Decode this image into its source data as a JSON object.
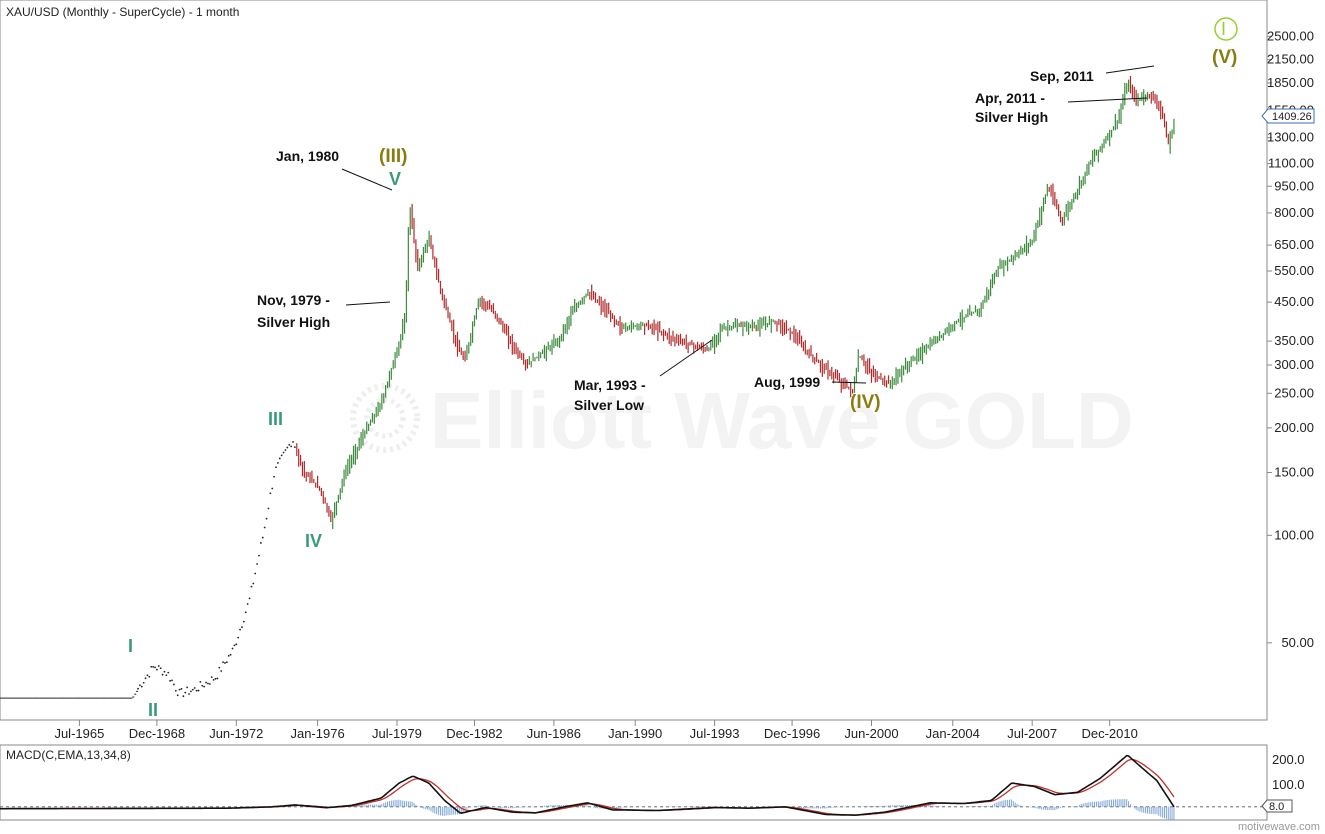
{
  "title": "XAU/USD (Monthly - SuperCycle) - 1 month",
  "watermark": "Elliott Wave GOLD",
  "footer": "motivewave.com",
  "last_price_label": "1409.26",
  "chart_data": {
    "type": "bar",
    "scale": "log",
    "ylim": [
      32,
      3000
    ],
    "xlim": [
      1962.0,
      2016.0
    ],
    "y_ticks": [
      "2500.00",
      "2150.00",
      "1850.00",
      "1550.00",
      "1300.00",
      "1100.00",
      "950.00",
      "800.00",
      "650.00",
      "550.00",
      "450.00",
      "350.00",
      "300.00",
      "250.00",
      "200.00",
      "150.00",
      "100.00",
      "50.00"
    ],
    "x_ticks": [
      "Jul-1965",
      "Dec-1968",
      "Jun-1972",
      "Jan-1976",
      "Jul-1979",
      "Dec-1982",
      "Jun-1986",
      "Jan-1990",
      "Jul-1993",
      "Dec-1996",
      "Jun-2000",
      "Jan-2004",
      "Jul-2007",
      "Dec-2010"
    ],
    "price_path": [
      [
        1962.0,
        35
      ],
      [
        1967.8,
        35
      ],
      [
        1968.3,
        39
      ],
      [
        1968.8,
        43
      ],
      [
        1969.4,
        41
      ],
      [
        1969.9,
        36
      ],
      [
        1970.6,
        37
      ],
      [
        1971.5,
        40
      ],
      [
        1972.3,
        48
      ],
      [
        1973.0,
        66
      ],
      [
        1973.6,
        100
      ],
      [
        1974.1,
        150
      ],
      [
        1974.9,
        186
      ],
      [
        1975.4,
        150
      ],
      [
        1976.1,
        135
      ],
      [
        1976.6,
        110
      ],
      [
        1977.2,
        150
      ],
      [
        1978.0,
        190
      ],
      [
        1978.8,
        235
      ],
      [
        1979.5,
        330
      ],
      [
        1979.85,
        400
      ],
      [
        1980.05,
        850
      ],
      [
        1980.4,
        560
      ],
      [
        1980.9,
        680
      ],
      [
        1981.4,
        490
      ],
      [
        1982.2,
        330
      ],
      [
        1982.5,
        310
      ],
      [
        1983.1,
        460
      ],
      [
        1983.8,
        420
      ],
      [
        1984.6,
        340
      ],
      [
        1985.2,
        300
      ],
      [
        1985.9,
        325
      ],
      [
        1986.6,
        350
      ],
      [
        1987.2,
        420
      ],
      [
        1987.9,
        480
      ],
      [
        1988.5,
        440
      ],
      [
        1989.4,
        380
      ],
      [
        1990.3,
        390
      ],
      [
        1990.9,
        380
      ],
      [
        1991.5,
        360
      ],
      [
        1992.3,
        345
      ],
      [
        1993.2,
        330
      ],
      [
        1993.8,
        380
      ],
      [
        1994.5,
        385
      ],
      [
        1995.5,
        385
      ],
      [
        1996.1,
        400
      ],
      [
        1996.9,
        370
      ],
      [
        1997.5,
        330
      ],
      [
        1998.3,
        295
      ],
      [
        1999.2,
        265
      ],
      [
        1999.6,
        253
      ],
      [
        1999.85,
        320
      ],
      [
        2000.4,
        285
      ],
      [
        2001.2,
        265
      ],
      [
        2002.2,
        310
      ],
      [
        2003.2,
        350
      ],
      [
        2004.2,
        400
      ],
      [
        2005.2,
        430
      ],
      [
        2006.0,
        560
      ],
      [
        2006.8,
        610
      ],
      [
        2007.5,
        670
      ],
      [
        2008.2,
        950
      ],
      [
        2008.8,
        760
      ],
      [
        2009.5,
        930
      ],
      [
        2010.0,
        1100
      ],
      [
        2010.8,
        1300
      ],
      [
        2011.3,
        1470
      ],
      [
        2011.7,
        1850
      ],
      [
        2012.1,
        1650
      ],
      [
        2012.6,
        1720
      ],
      [
        2013.1,
        1620
      ],
      [
        2013.5,
        1250
      ],
      [
        2013.75,
        1409
      ]
    ],
    "annotations": [
      {
        "text": "Jan, 1980"
      },
      {
        "text": "Nov, 1979 -"
      },
      {
        "text": "Silver High"
      },
      {
        "text": "Mar, 1993 -"
      },
      {
        "text": "Silver Low"
      },
      {
        "text": "Aug, 1999"
      },
      {
        "text": "Sep, 2011"
      },
      {
        "text": "Apr, 2011 -"
      },
      {
        "text": "Silver High"
      }
    ],
    "wave_labels": {
      "I": "I",
      "II": "II",
      "III": "III",
      "IV": "IV",
      "V": "V",
      "wIII": "(III)",
      "wIV": "(IV)",
      "wV": "(V)",
      "circleI": "I"
    },
    "macd": {
      "label": "MACD(C,EMA,13,34,8)",
      "ticks": [
        "200.0",
        "100.0"
      ],
      "last_value": "8.0",
      "ylim": [
        -40,
        260
      ],
      "path": [
        [
          1962.0,
          0
        ],
        [
          1972.0,
          2
        ],
        [
          1974.0,
          8
        ],
        [
          1975.0,
          16
        ],
        [
          1976.4,
          4
        ],
        [
          1977.5,
          14
        ],
        [
          1978.8,
          45
        ],
        [
          1979.6,
          110
        ],
        [
          1980.2,
          140
        ],
        [
          1980.9,
          110
        ],
        [
          1981.6,
          35
        ],
        [
          1982.3,
          -20
        ],
        [
          1983.4,
          5
        ],
        [
          1984.6,
          -15
        ],
        [
          1985.6,
          -18
        ],
        [
          1987.0,
          10
        ],
        [
          1987.9,
          25
        ],
        [
          1989.0,
          -5
        ],
        [
          1991.0,
          -8
        ],
        [
          1993.5,
          5
        ],
        [
          1995.0,
          2
        ],
        [
          1996.6,
          8
        ],
        [
          1998.4,
          -25
        ],
        [
          1999.7,
          -28
        ],
        [
          2001.0,
          -15
        ],
        [
          2003.0,
          25
        ],
        [
          2004.5,
          22
        ],
        [
          2005.7,
          35
        ],
        [
          2006.6,
          110
        ],
        [
          2007.6,
          95
        ],
        [
          2008.5,
          60
        ],
        [
          2009.5,
          70
        ],
        [
          2010.5,
          130
        ],
        [
          2011.7,
          230
        ],
        [
          2012.4,
          170
        ],
        [
          2013.0,
          120
        ],
        [
          2013.75,
          8
        ]
      ]
    }
  }
}
